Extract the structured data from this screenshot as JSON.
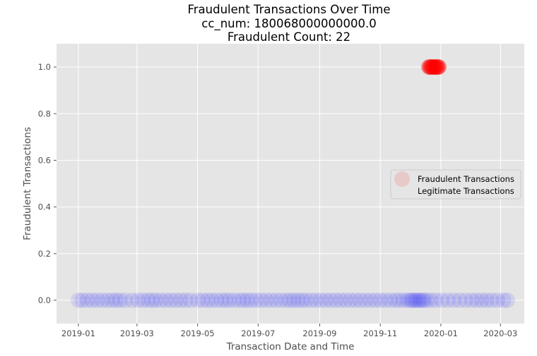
{
  "chart_data": {
    "type": "scatter",
    "title": "Fraudulent Transactions Over Time",
    "subtitle_lines": [
      "cc_num: 180068000000000.0",
      "Fraudulent Count: 22"
    ],
    "xlabel": "Transaction Date and Time",
    "ylabel": "Fraudulent Transactions",
    "x_ticks": [
      "2019-01",
      "2019-03",
      "2019-05",
      "2019-07",
      "2019-09",
      "2019-11",
      "2020-01",
      "2020-03"
    ],
    "y_ticks": [
      "0.0",
      "0.2",
      "0.4",
      "0.6",
      "0.8",
      "1.0"
    ],
    "xlim": [
      "2018-12-10",
      "2020-03-25"
    ],
    "ylim": [
      -0.1,
      1.1
    ],
    "grid": true,
    "legend_position": "center-right",
    "series": [
      {
        "name": "Fraudulent Transactions",
        "color": "#ff0000",
        "y": 1,
        "x": [
          "2019-12-20",
          "2019-12-21",
          "2019-12-22",
          "2019-12-23",
          "2019-12-24",
          "2019-12-25",
          "2019-12-26",
          "2019-12-27",
          "2019-12-28",
          "2019-12-29",
          "2019-12-30"
        ]
      },
      {
        "name": "Legitimate Transactions",
        "color": "#0000ff",
        "y": 0,
        "x": [
          "2019-01-01",
          "2019-01-05",
          "2019-01-10",
          "2019-01-15",
          "2019-01-20",
          "2019-01-25",
          "2019-01-30",
          "2019-02-04",
          "2019-02-08",
          "2019-02-12",
          "2019-02-17",
          "2019-02-24",
          "2019-03-02",
          "2019-03-07",
          "2019-03-12",
          "2019-03-16",
          "2019-03-20",
          "2019-03-25",
          "2019-03-30",
          "2019-04-04",
          "2019-04-09",
          "2019-04-14",
          "2019-04-19",
          "2019-04-24",
          "2019-05-01",
          "2019-05-06",
          "2019-05-11",
          "2019-05-15",
          "2019-05-20",
          "2019-05-25",
          "2019-05-29",
          "2019-06-02",
          "2019-06-07",
          "2019-06-12",
          "2019-06-16",
          "2019-06-20",
          "2019-06-24",
          "2019-06-29",
          "2019-07-04",
          "2019-07-09",
          "2019-07-14",
          "2019-07-19",
          "2019-07-24",
          "2019-07-29",
          "2019-08-02",
          "2019-08-06",
          "2019-08-10",
          "2019-08-14",
          "2019-08-18",
          "2019-08-23",
          "2019-08-28",
          "2019-09-02",
          "2019-09-07",
          "2019-09-12",
          "2019-09-17",
          "2019-09-22",
          "2019-09-27",
          "2019-10-02",
          "2019-10-07",
          "2019-10-12",
          "2019-10-17",
          "2019-10-22",
          "2019-10-27",
          "2019-11-01",
          "2019-11-06",
          "2019-11-11",
          "2019-11-16",
          "2019-11-20",
          "2019-11-24",
          "2019-11-28",
          "2019-12-01",
          "2019-12-03",
          "2019-12-05",
          "2019-12-07",
          "2019-12-09",
          "2019-12-11",
          "2019-12-13",
          "2019-12-15",
          "2019-12-18",
          "2019-12-22",
          "2019-12-27",
          "2020-01-02",
          "2020-01-08",
          "2020-01-14",
          "2020-01-20",
          "2020-01-26",
          "2020-02-01",
          "2020-02-06",
          "2020-02-11",
          "2020-02-16",
          "2020-02-21",
          "2020-02-27",
          "2020-03-04",
          "2020-03-08"
        ]
      }
    ]
  }
}
